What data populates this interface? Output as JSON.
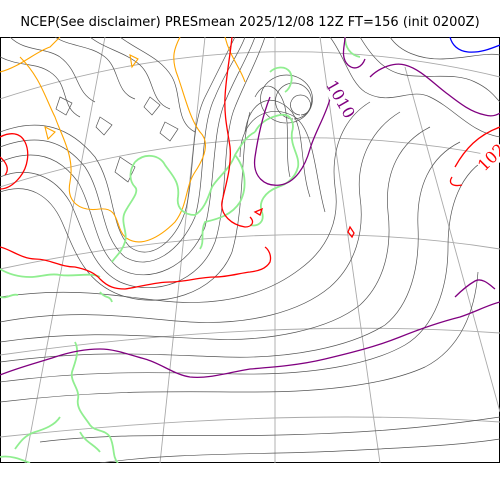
{
  "title": "NCEP(See disclaimer) PRESmean 2025/12/08 12Z FT=156 (init 0200Z)",
  "contour_labels": {
    "low_center": "1010",
    "east": "102"
  },
  "colors": {
    "isobar": "#555555",
    "graticule": "#aaaaaa",
    "coast_green": "#90ee90",
    "contour_purple": "#800080",
    "contour_red": "#ff0000",
    "contour_blue": "#0000ff",
    "contour_orange": "#ffa500"
  }
}
